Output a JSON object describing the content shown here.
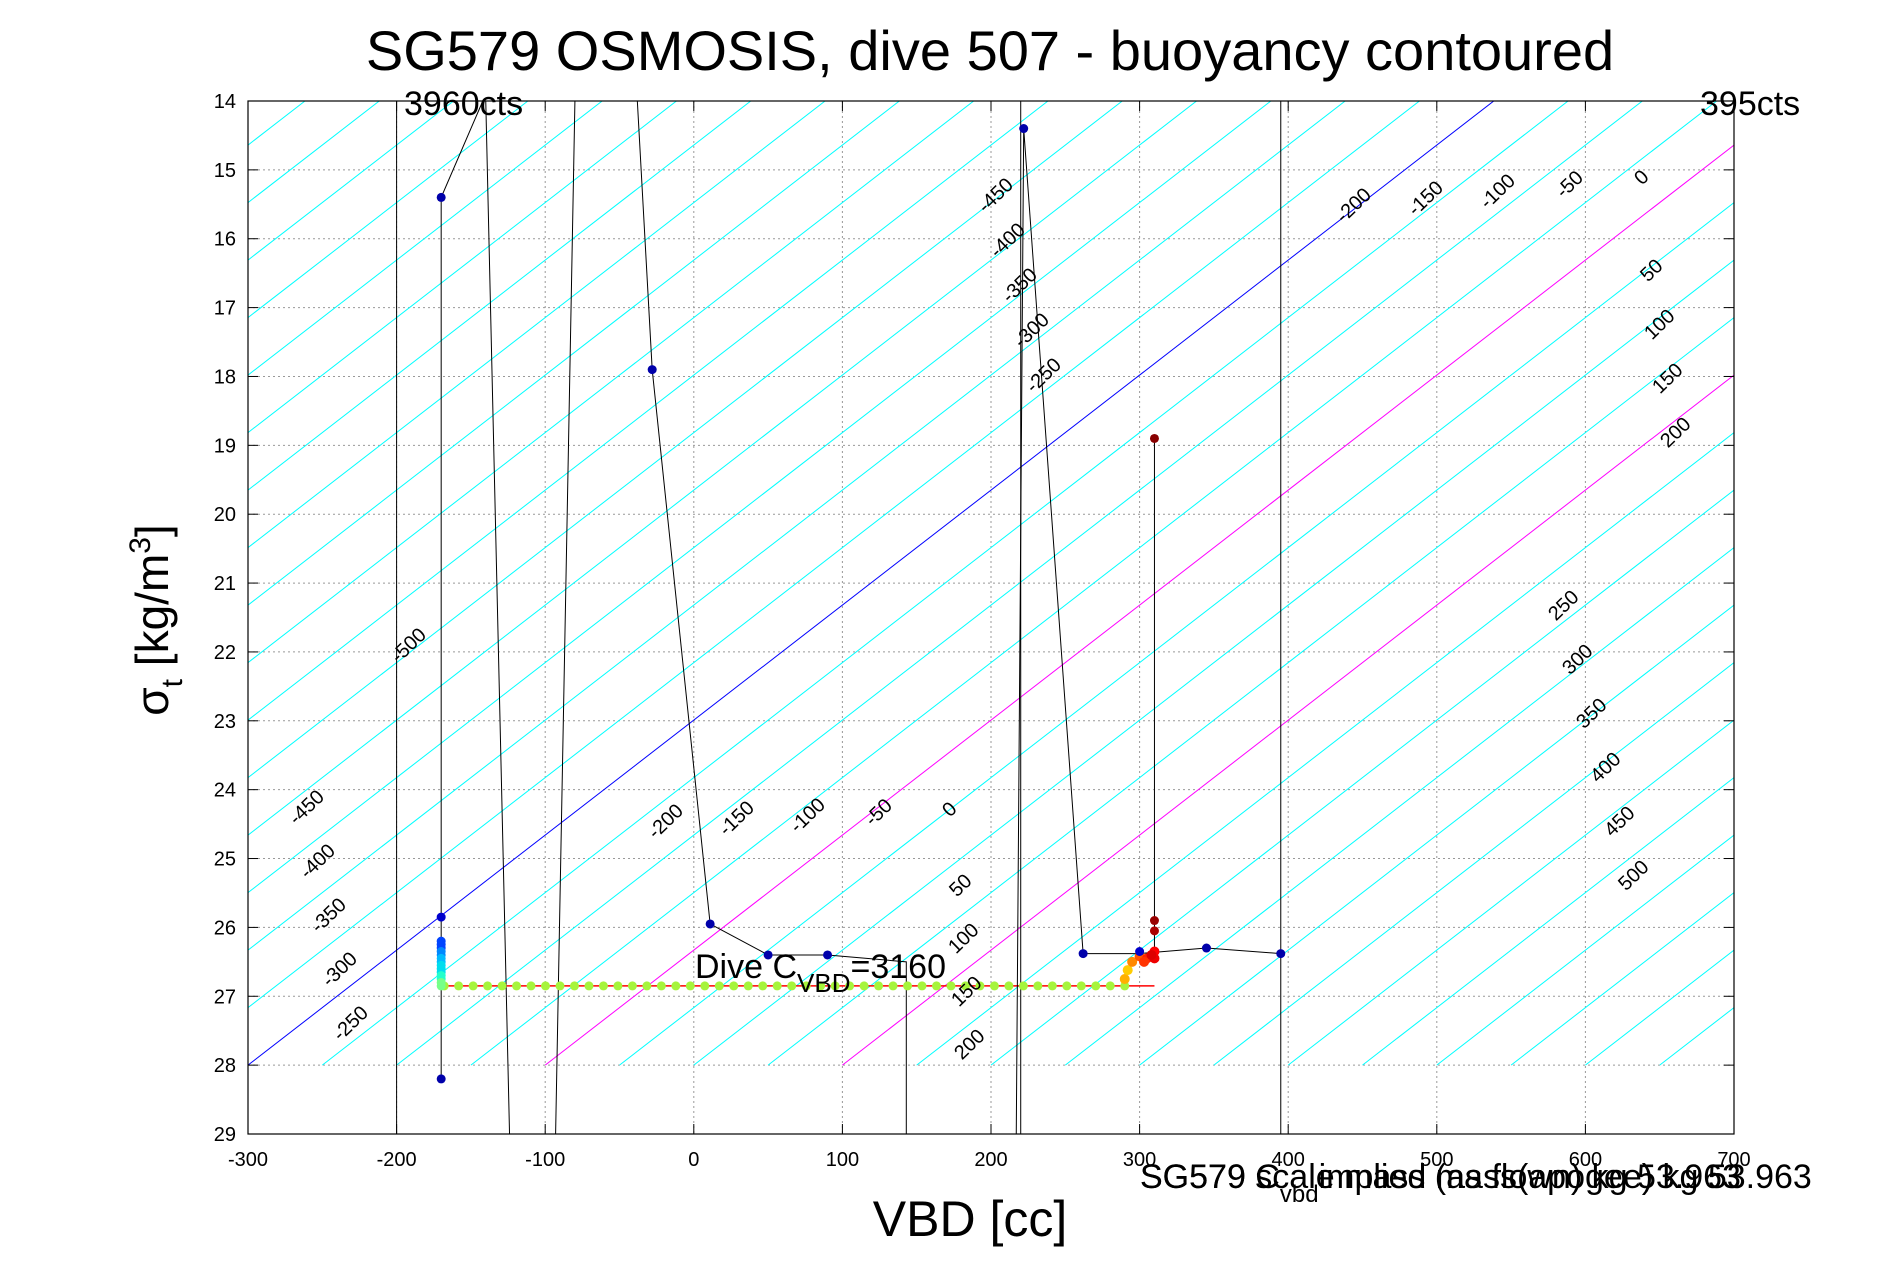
{
  "chart_data": {
    "type": "scatter",
    "title": "SG579 OSMOSIS, dive 507 - buoyancy contoured",
    "xlabel": "VBD [cc]",
    "ylabel": {
      "main": "σ",
      "sub": "t",
      "unit": " [kg/m",
      "sup": "3",
      "close": "]"
    },
    "xlim": [
      -300,
      700
    ],
    "ylim": [
      14,
      29
    ],
    "y_reversed": true,
    "grid": true,
    "x_ticks": [
      -300,
      -200,
      -100,
      0,
      100,
      200,
      300,
      400,
      500,
      600,
      700
    ],
    "y_ticks": [
      14,
      15,
      16,
      17,
      18,
      19,
      20,
      21,
      22,
      23,
      24,
      25,
      26,
      27,
      28,
      29
    ],
    "colors": {
      "contour": "#00ffff",
      "zero_contour": "#0000ff",
      "magenta_contour": "#ff00ff",
      "cvbd_line": "#ff0000",
      "axes": "#000000"
    },
    "contour_line": {
      "x0": -300,
      "y0": 28.0,
      "slope_sigma_per_cc": 0.0167,
      "spacing_cc": 50
    },
    "contour_labels_upper": [
      "-450",
      "-400",
      "-350",
      "-300",
      "-250",
      "-200",
      "-150",
      "-100",
      "-50",
      "0",
      "50",
      "100",
      "150",
      "200"
    ],
    "contour_labels_left": [
      "-500",
      "-450",
      "-400",
      "-350",
      "-300",
      "-250"
    ],
    "contour_labels_middle": [
      "-200",
      "-150",
      "-100",
      "-50",
      "0",
      "50",
      "100",
      "150",
      "200"
    ],
    "contour_labels_right": [
      "250",
      "300",
      "350",
      "400",
      "450",
      "500"
    ],
    "vertical_lines_x": [
      -200,
      395,
      220
    ],
    "annotations": {
      "left_counts": "3960cts",
      "right_counts": "395cts",
      "cvbd_label": "Dive C",
      "cvbd_sub": "VBD",
      "cvbd_value": "=3160",
      "bottom_vbd_prefix": "SG579 C",
      "bottom_vbd_sub": "vbd",
      "bottom_implied": "implied mass(apogee) kg 53.963",
      "bottom_overlay": "SG579 scale mass (as flown) kg 53.963"
    },
    "trace": [
      {
        "x": -170,
        "y": 28.2
      },
      {
        "x": -170,
        "y": 26.9
      },
      {
        "x": -170,
        "y": 26.3
      },
      {
        "x": -170,
        "y": 25.85
      },
      {
        "x": -170,
        "y": 15.4
      },
      {
        "x": -142,
        "y": 14
      },
      {
        "x": -140,
        "y": 14
      },
      {
        "x": -124,
        "y": 29
      },
      {
        "x": -93,
        "y": 29
      },
      {
        "x": -80,
        "y": 14
      },
      {
        "x": -38,
        "y": 14
      },
      {
        "x": -28,
        "y": 17.9
      },
      {
        "x": 11,
        "y": 25.95
      },
      {
        "x": 50,
        "y": 26.4
      },
      {
        "x": 90,
        "y": 26.4
      },
      {
        "x": 143,
        "y": 26.5
      },
      {
        "x": 143,
        "y": 29
      },
      {
        "x": 217,
        "y": 29
      },
      {
        "x": 222,
        "y": 14.4
      },
      {
        "x": 262,
        "y": 26.38
      },
      {
        "x": 300,
        "y": 26.38
      },
      {
        "x": 345,
        "y": 26.3
      },
      {
        "x": 395,
        "y": 26.38
      }
    ],
    "markers": [
      {
        "x": -170,
        "y": 28.2,
        "c": "#0000aa"
      },
      {
        "x": -170,
        "y": 25.85,
        "c": "#0000cc"
      },
      {
        "x": -170,
        "y": 15.4,
        "c": "#0000aa"
      },
      {
        "x": -28,
        "y": 17.9,
        "c": "#0000aa"
      },
      {
        "x": 11,
        "y": 25.95,
        "c": "#0000aa"
      },
      {
        "x": 50,
        "y": 26.4,
        "c": "#0000aa"
      },
      {
        "x": 90,
        "y": 26.4,
        "c": "#0000aa"
      },
      {
        "x": 222,
        "y": 14.4,
        "c": "#0000aa"
      },
      {
        "x": 262,
        "y": 26.38,
        "c": "#0000aa"
      },
      {
        "x": 300,
        "y": 26.35,
        "c": "#0000cc"
      },
      {
        "x": 345,
        "y": 26.3,
        "c": "#0000aa"
      },
      {
        "x": 395,
        "y": 26.38,
        "c": "#0000aa"
      },
      {
        "x": 310,
        "y": 18.9,
        "c": "#880000"
      },
      {
        "x": 310,
        "y": 25.9,
        "c": "#990000"
      },
      {
        "x": 310,
        "y": 26.05,
        "c": "#aa0000"
      }
    ],
    "bottom_run": {
      "x_start": -168,
      "x_end": 290,
      "y": 26.85,
      "color": "#a6f43c",
      "count": 48
    },
    "left_stack": {
      "x": -170,
      "y_start": 26.2,
      "y_end": 26.85,
      "colors": [
        "#0044ff",
        "#0088ff",
        "#00bbff",
        "#00ddee",
        "#22ffcc",
        "#77ff88"
      ]
    },
    "right_cluster": [
      {
        "x": 290,
        "y": 26.75,
        "c": "#ffb000"
      },
      {
        "x": 292,
        "y": 26.62,
        "c": "#ffcc00"
      },
      {
        "x": 295,
        "y": 26.5,
        "c": "#ff8800"
      },
      {
        "x": 300,
        "y": 26.42,
        "c": "#ff5500"
      },
      {
        "x": 305,
        "y": 26.45,
        "c": "#ff2200"
      },
      {
        "x": 310,
        "y": 26.45,
        "c": "#ee0000"
      },
      {
        "x": 310,
        "y": 26.35,
        "c": "#ff0000"
      },
      {
        "x": 308,
        "y": 26.4,
        "c": "#dd0000"
      },
      {
        "x": 303,
        "y": 26.5,
        "c": "#ff3300"
      }
    ]
  }
}
